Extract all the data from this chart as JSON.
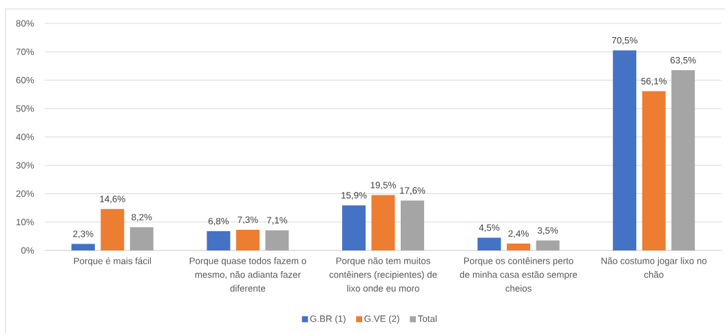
{
  "chart_data": {
    "type": "bar",
    "categories": [
      "Porque é mais fácil",
      "Porque quase todos fazem o mesmo, não adianta fazer diferente",
      "Porque não tem muitos contêiners (recipientes) de lixo onde eu moro",
      "Porque os contêiners perto de minha casa estão sempre cheios",
      "Não costumo jogar lixo no chão"
    ],
    "series": [
      {
        "name": "G.BR (1)",
        "color": "#4472c4",
        "values": [
          2.3,
          6.8,
          15.9,
          4.5,
          70.5
        ],
        "value_labels": [
          "2,3%",
          "6,8%",
          "15,9%",
          "4,5%",
          "70,5%"
        ]
      },
      {
        "name": "G.VE (2)",
        "color": "#ed7d31",
        "values": [
          14.6,
          7.3,
          19.5,
          2.4,
          56.1
        ],
        "value_labels": [
          "14,6%",
          "7,3%",
          "19,5%",
          "2,4%",
          "56,1%"
        ]
      },
      {
        "name": "Total",
        "color": "#a5a5a5",
        "values": [
          8.2,
          7.1,
          17.6,
          3.5,
          63.5
        ],
        "value_labels": [
          "8,2%",
          "7,1%",
          "17,6%",
          "3,5%",
          "63,5%"
        ]
      }
    ],
    "ylim": [
      0,
      80
    ],
    "yticks": [
      {
        "value": 0,
        "label": "0%"
      },
      {
        "value": 10,
        "label": "10%"
      },
      {
        "value": 20,
        "label": "20%"
      },
      {
        "value": 30,
        "label": "30%"
      },
      {
        "value": 40,
        "label": "40%"
      },
      {
        "value": 50,
        "label": "50%"
      },
      {
        "value": 60,
        "label": "60%"
      },
      {
        "value": 70,
        "label": "70%"
      },
      {
        "value": 80,
        "label": "80%"
      }
    ],
    "grid": "y",
    "legend": "bottom"
  }
}
